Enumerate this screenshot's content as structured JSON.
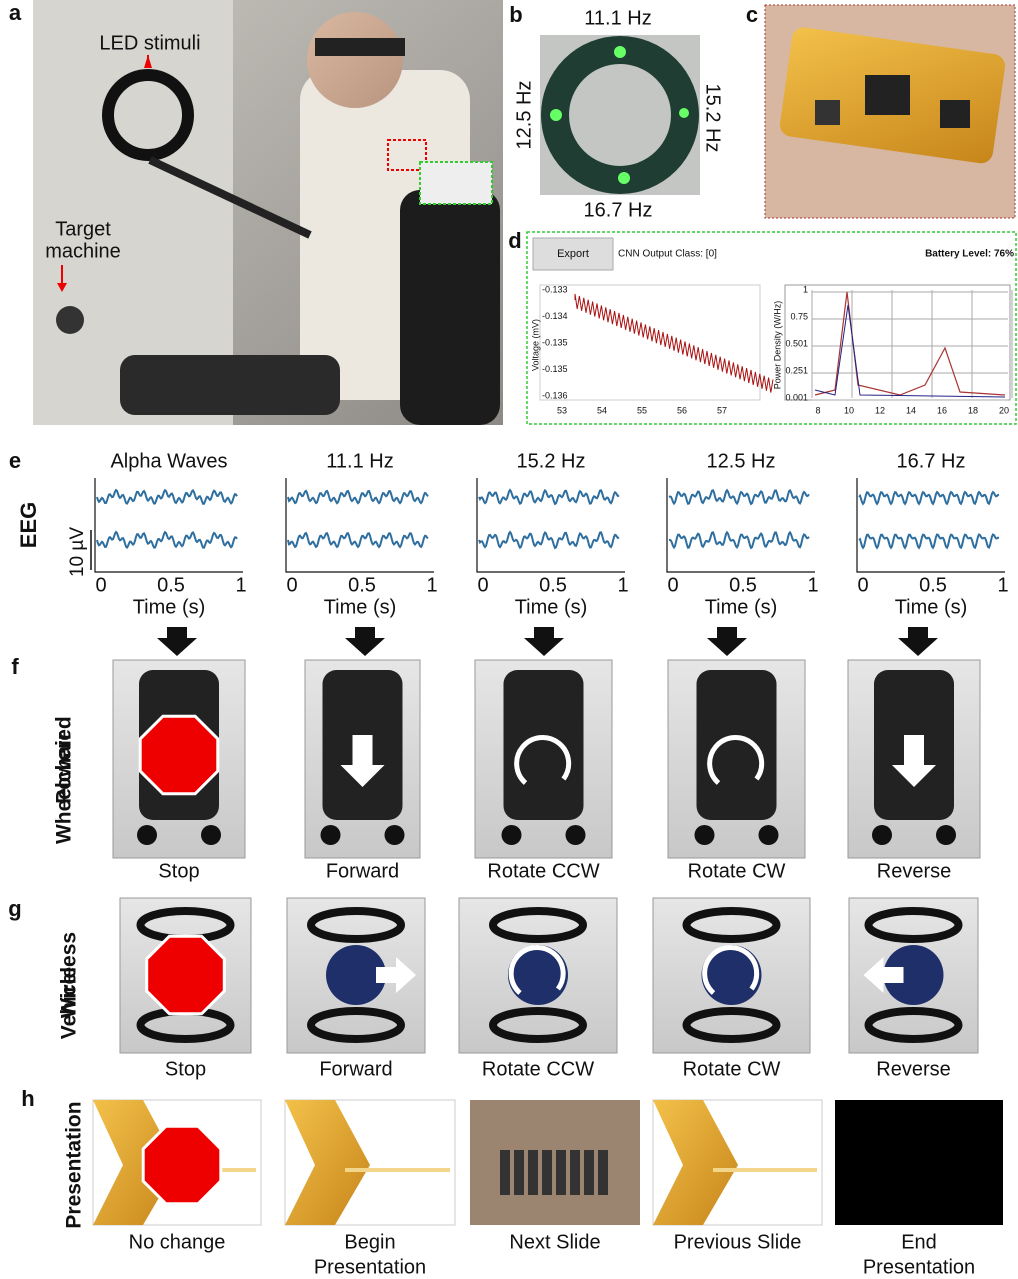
{
  "panel_a": {
    "label": "a",
    "led_stimuli": "LED stimuli",
    "target_machine": [
      "Target",
      "machine"
    ]
  },
  "panel_b": {
    "label": "b",
    "top": "11.1 Hz",
    "right": "15.2 Hz",
    "bottom": "16.7 Hz",
    "left": "12.5 Hz"
  },
  "panel_c": {
    "label": "c"
  },
  "panel_d": {
    "label": "d",
    "button": "Export",
    "output_class": "CNN Output Class: [0]",
    "battery": "Battery Level: 76%",
    "voltage_plot": {
      "ylabel": "Voltage (mV)",
      "yticks": [
        "-0.133",
        "-0.134",
        "-0.135",
        "-0.135",
        "-0.136"
      ],
      "xticks": [
        "53",
        "54",
        "55",
        "56",
        "57"
      ]
    },
    "power_plot": {
      "ylabel": "Power Density (W/Hz)",
      "yticks": [
        "1",
        "0.75",
        "0.501",
        "0.251",
        "0.001"
      ],
      "xticks": [
        "8",
        "10",
        "12",
        "14",
        "16",
        "18",
        "20"
      ]
    }
  },
  "panel_e": {
    "label": "e",
    "row_label": "EEG",
    "scale_label": "10 µV",
    "x_label": "Time (s)",
    "x_ticks": [
      "0",
      "0.5",
      "1"
    ],
    "titles": [
      "Alpha Waves",
      "11.1 Hz",
      "15.2 Hz",
      "12.5 Hz",
      "16.7 Hz"
    ]
  },
  "panel_f": {
    "label": "f",
    "row_label": [
      "Powered",
      "Wheelchair"
    ],
    "captions": [
      "Stop",
      "Forward",
      "Rotate CCW",
      "Rotate CW",
      "Reverse"
    ]
  },
  "panel_g": {
    "label": "g",
    "row_label": [
      "Wireless",
      "Vehicle"
    ],
    "captions": [
      "Stop",
      "Forward",
      "Rotate CCW",
      "Rotate CW",
      "Reverse"
    ]
  },
  "panel_h": {
    "label": "h",
    "row_label": "Presentation",
    "captions": [
      [
        "No change"
      ],
      [
        "Begin",
        "Presentation"
      ],
      [
        "Next Slide"
      ],
      [
        "Previous Slide"
      ],
      [
        "End",
        "Presentation"
      ]
    ]
  }
}
